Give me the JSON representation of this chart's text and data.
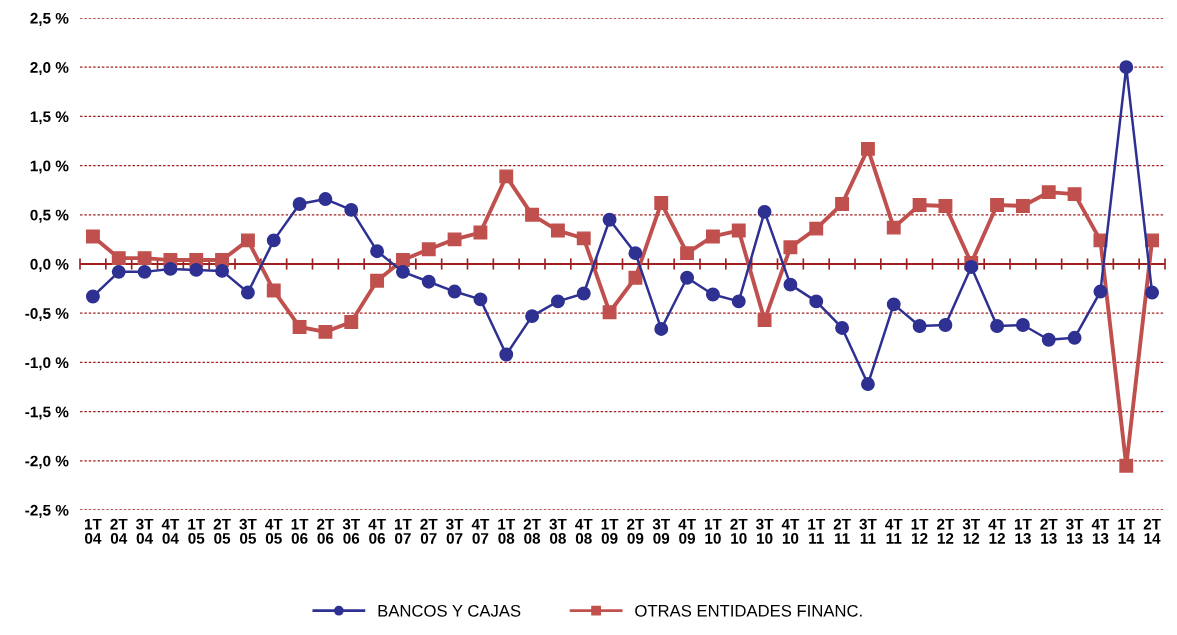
{
  "chart_data": {
    "type": "line",
    "categories": [
      "1T\n04",
      "2T\n04",
      "3T\n04",
      "4T\n04",
      "1T\n05",
      "2T\n05",
      "3T\n05",
      "4T\n05",
      "1T\n06",
      "2T\n06",
      "3T\n06",
      "4T\n06",
      "1T\n07",
      "2T\n07",
      "3T\n07",
      "4T\n07",
      "1T\n08",
      "2T\n08",
      "3T\n08",
      "4T\n08",
      "1T\n09",
      "2T\n09",
      "3T\n09",
      "4T\n09",
      "1T\n10",
      "2T\n10",
      "3T\n10",
      "4T\n10",
      "1T\n11",
      "2T\n11",
      "3T\n11",
      "4T\n11",
      "1T\n12",
      "2T\n12",
      "3T\n12",
      "4T\n12",
      "1T\n13",
      "2T\n13",
      "3T\n13",
      "4T\n13",
      "1T\n14",
      "2T\n14"
    ],
    "series": [
      {
        "name": "BANCOS Y CAJAS",
        "color": "#2e3192",
        "marker": "circle",
        "values": [
          -0.33,
          -0.08,
          -0.08,
          -0.05,
          -0.06,
          -0.07,
          -0.29,
          0.24,
          0.61,
          0.66,
          0.55,
          0.13,
          -0.08,
          -0.18,
          -0.28,
          -0.36,
          -0.92,
          -0.53,
          -0.38,
          -0.3,
          0.45,
          0.11,
          -0.66,
          -0.14,
          -0.31,
          -0.38,
          0.53,
          -0.21,
          -0.38,
          -0.65,
          -1.22,
          -0.41,
          -0.63,
          -0.62,
          -0.03,
          -0.63,
          -0.62,
          -0.77,
          -0.75,
          -0.28,
          2.0,
          -0.29
        ]
      },
      {
        "name": "OTRAS ENTIDADES FINANC.",
        "color": "#c0504d",
        "marker": "square",
        "values": [
          0.28,
          0.06,
          0.06,
          0.04,
          0.04,
          0.04,
          0.24,
          -0.27,
          -0.64,
          -0.69,
          -0.59,
          -0.17,
          0.04,
          0.15,
          0.25,
          0.32,
          0.89,
          0.5,
          0.34,
          0.26,
          -0.49,
          -0.14,
          0.62,
          0.11,
          0.28,
          0.34,
          -0.57,
          0.17,
          0.36,
          0.61,
          1.17,
          0.37,
          0.6,
          0.59,
          0.01,
          0.6,
          0.59,
          0.73,
          0.71,
          0.24,
          -2.05,
          0.24
        ]
      }
    ],
    "ylim": [
      -2.5,
      2.5
    ],
    "yticks": [
      {
        "value": -2.5,
        "label": "-2,5 %"
      },
      {
        "value": -2.0,
        "label": "-2,0 %"
      },
      {
        "value": -1.5,
        "label": "-1,5 %"
      },
      {
        "value": -1.0,
        "label": "-1,0 %"
      },
      {
        "value": -0.5,
        "label": "-0,5 %"
      },
      {
        "value": 0,
        "label": "0,0 %"
      },
      {
        "value": 0.5,
        "label": "0,5 %"
      },
      {
        "value": 1.0,
        "label": "1,0 %"
      },
      {
        "value": 1.5,
        "label": "1,5 %"
      },
      {
        "value": 2.0,
        "label": "2,0 %"
      },
      {
        "value": 2.5,
        "label": "2,5 %"
      }
    ],
    "ref_lines": [
      {
        "axis": "y",
        "value": 0,
        "color": "#a02020"
      }
    ],
    "grid": "y",
    "legend": "bottom"
  }
}
